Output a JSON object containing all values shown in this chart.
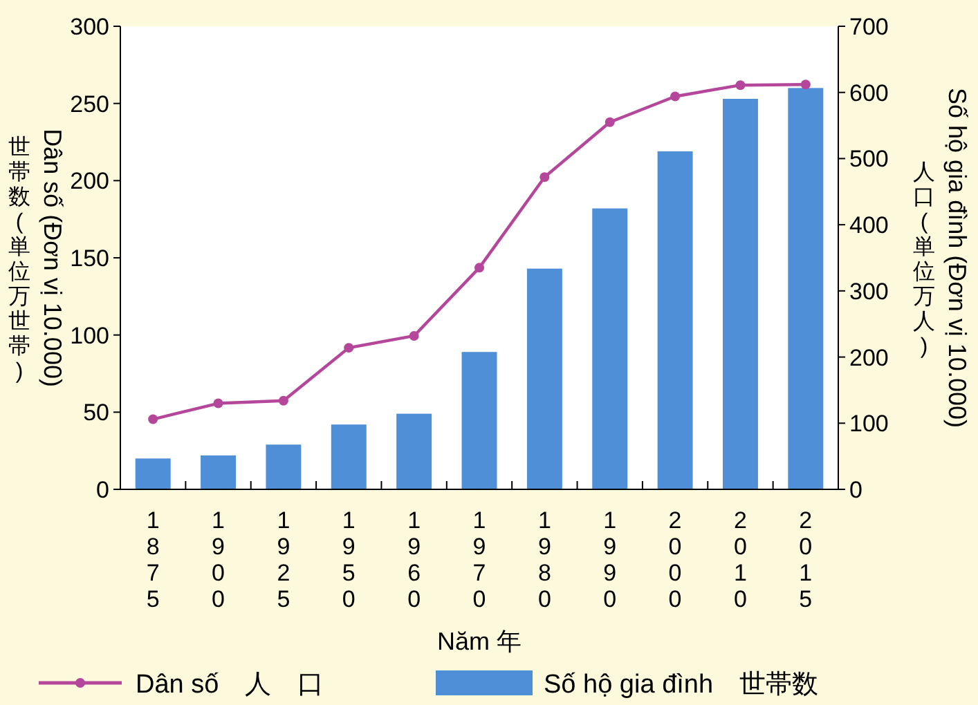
{
  "chart_data": {
    "type": "bar",
    "categories": [
      "1875",
      "1900",
      "1925",
      "1950",
      "1960",
      "1970",
      "1980",
      "1990",
      "2000",
      "2010",
      "2015"
    ],
    "xlabel": "Năm 年",
    "ylabel": "Dân số (Đơn vị 10.000)\n世帯数(単位万世帯)",
    "y2label": "Số hộ gia đình (Đơn vị 10.000)\n人口(単位万人)",
    "series": [
      {
        "name": "Số hộ gia đình　世帯数",
        "color": "#4f8fd8",
        "values": [
          20,
          22,
          29,
          42,
          49,
          89,
          143,
          182,
          219,
          253,
          260
        ]
      },
      {
        "name": "Dân số　人　口",
        "type": "line",
        "axis": "y2",
        "color": "#b5479b",
        "marker": "circle",
        "values": [
          106,
          130,
          134,
          214,
          232,
          335,
          472,
          555,
          594,
          611,
          612
        ]
      }
    ],
    "ylim": [
      0,
      300
    ],
    "yticks": [
      0,
      50,
      100,
      150,
      200,
      250,
      300
    ],
    "y2lim": [
      0,
      700
    ],
    "y2ticks": [
      0,
      100,
      200,
      300,
      400,
      500,
      600,
      700
    ],
    "grid": false,
    "legend": "bottom"
  }
}
